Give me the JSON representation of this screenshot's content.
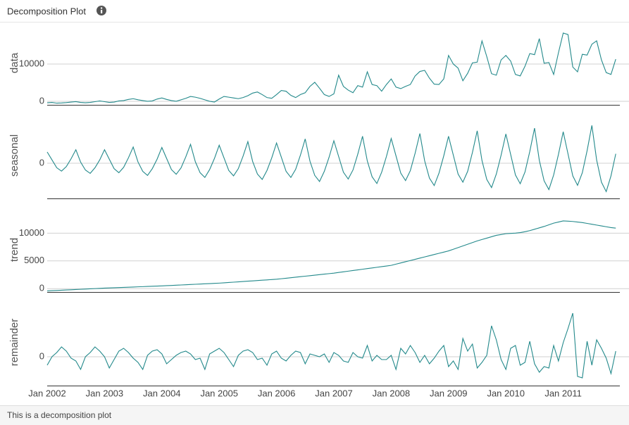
{
  "header": {
    "title": "Decomposition Plot"
  },
  "footer": {
    "text": "This is a decomposition plot"
  },
  "chart_data": [
    {
      "type": "line",
      "ylabel": "data",
      "color": "#23898b",
      "grid": true,
      "ylim": [
        -950,
        21500
      ],
      "yticks": [
        0,
        10000
      ],
      "values": [
        -400,
        -300,
        -500,
        -450,
        -350,
        -200,
        -100,
        -300,
        -400,
        -300,
        -100,
        100,
        -100,
        -300,
        -200,
        100,
        200,
        500,
        700,
        400,
        200,
        0,
        100,
        600,
        900,
        500,
        200,
        0,
        400,
        800,
        1300,
        1100,
        800,
        400,
        0,
        -200,
        600,
        1300,
        1100,
        900,
        700,
        1000,
        1500,
        2200,
        2500,
        1800,
        1000,
        800,
        1800,
        2900,
        2700,
        1600,
        1000,
        1800,
        2300,
        4000,
        5100,
        3500,
        1800,
        1300,
        2000,
        7000,
        4000,
        3000,
        2300,
        4200,
        3800,
        7900,
        4500,
        4200,
        2700,
        4500,
        6000,
        3800,
        3400,
        4000,
        4500,
        6800,
        8000,
        8300,
        6200,
        4600,
        4500,
        6000,
        12300,
        10000,
        8900,
        5500,
        7500,
        10300,
        10500,
        16200,
        12000,
        7400,
        7000,
        11100,
        12300,
        10800,
        7200,
        6800,
        9400,
        12800,
        12500,
        16800,
        10200,
        10400,
        7200,
        13000,
        18300,
        17900,
        9200,
        7900,
        12600,
        12400,
        15300,
        16200,
        11100,
        7700,
        7200,
        11300
      ]
    },
    {
      "type": "line",
      "ylabel": "seasonal",
      "color": "#23898b",
      "grid": true,
      "ylim": [
        -2500,
        3600
      ],
      "yticks": [
        0
      ],
      "values": [
        800,
        240,
        -320,
        -560,
        -240,
        320,
        960,
        80,
        -480,
        -720,
        -320,
        240,
        960,
        288,
        -384,
        -672,
        -288,
        384,
        1152,
        96,
        -576,
        -864,
        -384,
        288,
        1120,
        336,
        -448,
        -784,
        -336,
        448,
        1344,
        112,
        -672,
        -1008,
        -448,
        336,
        1280,
        384,
        -512,
        -896,
        -384,
        512,
        1536,
        128,
        -768,
        -1152,
        -512,
        384,
        1440,
        432,
        -576,
        -1008,
        -432,
        576,
        1728,
        144,
        -864,
        -1296,
        -576,
        432,
        1600,
        480,
        -640,
        -1120,
        -480,
        640,
        1920,
        160,
        -960,
        -1440,
        -640,
        480,
        1760,
        528,
        -704,
        -1232,
        -528,
        704,
        2112,
        176,
        -1056,
        -1584,
        -704,
        528,
        1920,
        576,
        -768,
        -1344,
        -576,
        768,
        2304,
        192,
        -1152,
        -1728,
        -768,
        576,
        2080,
        624,
        -832,
        -1456,
        -624,
        832,
        2496,
        208,
        -1248,
        -1872,
        -832,
        624,
        2240,
        672,
        -896,
        -1568,
        -672,
        896,
        2688,
        224,
        -1344,
        -2016,
        -896,
        672
      ]
    },
    {
      "type": "line",
      "ylabel": "trend",
      "color": "#23898b",
      "grid": true,
      "ylim": [
        -600,
        14600
      ],
      "yticks": [
        0,
        5000,
        10000
      ],
      "values": [
        -400,
        -358,
        -317,
        -275,
        -233,
        -192,
        -150,
        -108,
        -67,
        -25,
        17,
        58,
        100,
        133,
        167,
        200,
        233,
        267,
        300,
        333,
        367,
        400,
        433,
        467,
        500,
        542,
        583,
        625,
        667,
        708,
        750,
        792,
        833,
        875,
        917,
        958,
        1000,
        1058,
        1117,
        1175,
        1233,
        1292,
        1350,
        1408,
        1467,
        1525,
        1583,
        1642,
        1700,
        1792,
        1883,
        1975,
        2067,
        2158,
        2250,
        2342,
        2433,
        2525,
        2617,
        2708,
        2800,
        2917,
        3033,
        3150,
        3267,
        3383,
        3500,
        3617,
        3733,
        3850,
        3967,
        4083,
        4200,
        4417,
        4633,
        4850,
        5067,
        5283,
        5500,
        5717,
        5933,
        6150,
        6367,
        6583,
        6800,
        7100,
        7400,
        7700,
        8000,
        8300,
        8600,
        8850,
        9100,
        9350,
        9600,
        9750,
        9900,
        9950,
        10000,
        10100,
        10250,
        10450,
        10700,
        10950,
        11200,
        11500,
        11800,
        12000,
        12200,
        12150,
        12100,
        12000,
        11900,
        11750,
        11600,
        11450,
        11300,
        11150,
        11000,
        10900
      ]
    },
    {
      "type": "line",
      "ylabel": "remainder",
      "color": "#23898b",
      "grid": true,
      "ylim": [
        -2050,
        4100
      ],
      "yticks": [
        0
      ],
      "values": [
        -600,
        0,
        300,
        700,
        400,
        -100,
        -300,
        -900,
        0,
        300,
        700,
        400,
        0,
        -800,
        -200,
        400,
        600,
        300,
        -100,
        -400,
        -900,
        100,
        400,
        500,
        200,
        -500,
        -200,
        100,
        300,
        400,
        200,
        -200,
        -100,
        -900,
        200,
        400,
        600,
        300,
        -200,
        -700,
        100,
        400,
        500,
        300,
        -200,
        -100,
        -600,
        200,
        400,
        -100,
        -300,
        100,
        400,
        300,
        -500,
        200,
        100,
        0,
        200,
        -400,
        300,
        100,
        -300,
        -400,
        300,
        0,
        -100,
        800,
        -300,
        100,
        -200,
        -200,
        100,
        -900,
        600,
        200,
        800,
        300,
        -400,
        100,
        -500,
        -100,
        400,
        800,
        -700,
        -300,
        -900,
        1300,
        400,
        900,
        -800,
        -400,
        100,
        2200,
        1200,
        -200,
        -900,
        600,
        800,
        -600,
        -400,
        1100,
        -500,
        -1100,
        -700,
        -800,
        800,
        -300,
        1000,
        2000,
        3100,
        -1400,
        -1500,
        1100,
        -600,
        1200,
        600,
        -100,
        -1200,
        400
      ],
      "x": [
        "2002-01",
        "2002-02",
        "2002-03",
        "2002-04",
        "2002-05",
        "2002-06",
        "2002-07",
        "2002-08",
        "2002-09",
        "2002-10",
        "2002-11",
        "2002-12",
        "2003-01",
        "2003-02",
        "2003-03",
        "2003-04",
        "2003-05",
        "2003-06",
        "2003-07",
        "2003-08",
        "2003-09",
        "2003-10",
        "2003-11",
        "2003-12",
        "2004-01",
        "2004-02",
        "2004-03",
        "2004-04",
        "2004-05",
        "2004-06",
        "2004-07",
        "2004-08",
        "2004-09",
        "2004-10",
        "2004-11",
        "2004-12",
        "2005-01",
        "2005-02",
        "2005-03",
        "2005-04",
        "2005-05",
        "2005-06",
        "2005-07",
        "2005-08",
        "2005-09",
        "2005-10",
        "2005-11",
        "2005-12",
        "2006-01",
        "2006-02",
        "2006-03",
        "2006-04",
        "2006-05",
        "2006-06",
        "2006-07",
        "2006-08",
        "2006-09",
        "2006-10",
        "2006-11",
        "2006-12",
        "2007-01",
        "2007-02",
        "2007-03",
        "2007-04",
        "2007-05",
        "2007-06",
        "2007-07",
        "2007-08",
        "2007-09",
        "2007-10",
        "2007-11",
        "2007-12",
        "2008-01",
        "2008-02",
        "2008-03",
        "2008-04",
        "2008-05",
        "2008-06",
        "2008-07",
        "2008-08",
        "2008-09",
        "2008-10",
        "2008-11",
        "2008-12",
        "2009-01",
        "2009-02",
        "2009-03",
        "2009-04",
        "2009-05",
        "2009-06",
        "2009-07",
        "2009-08",
        "2009-09",
        "2009-10",
        "2009-11",
        "2009-12",
        "2010-01",
        "2010-02",
        "2010-03",
        "2010-04",
        "2010-05",
        "2010-06",
        "2010-07",
        "2010-08",
        "2010-09",
        "2010-10",
        "2010-11",
        "2010-12",
        "2011-01",
        "2011-02",
        "2011-03",
        "2011-04",
        "2011-05",
        "2011-06",
        "2011-07",
        "2011-08",
        "2011-09",
        "2011-10",
        "2011-11",
        "2011-12"
      ],
      "xticks": [
        {
          "value": "2002-01",
          "label": "Jan 2002"
        },
        {
          "value": "2003-01",
          "label": "Jan 2003"
        },
        {
          "value": "2004-01",
          "label": "Jan 2004"
        },
        {
          "value": "2005-01",
          "label": "Jan 2005"
        },
        {
          "value": "2006-01",
          "label": "Jan 2006"
        },
        {
          "value": "2007-01",
          "label": "Jan 2007"
        },
        {
          "value": "2008-01",
          "label": "Jan 2008"
        },
        {
          "value": "2009-01",
          "label": "Jan 2009"
        },
        {
          "value": "2010-01",
          "label": "Jan 2010"
        },
        {
          "value": "2011-01",
          "label": "Jan 2011"
        }
      ]
    }
  ]
}
